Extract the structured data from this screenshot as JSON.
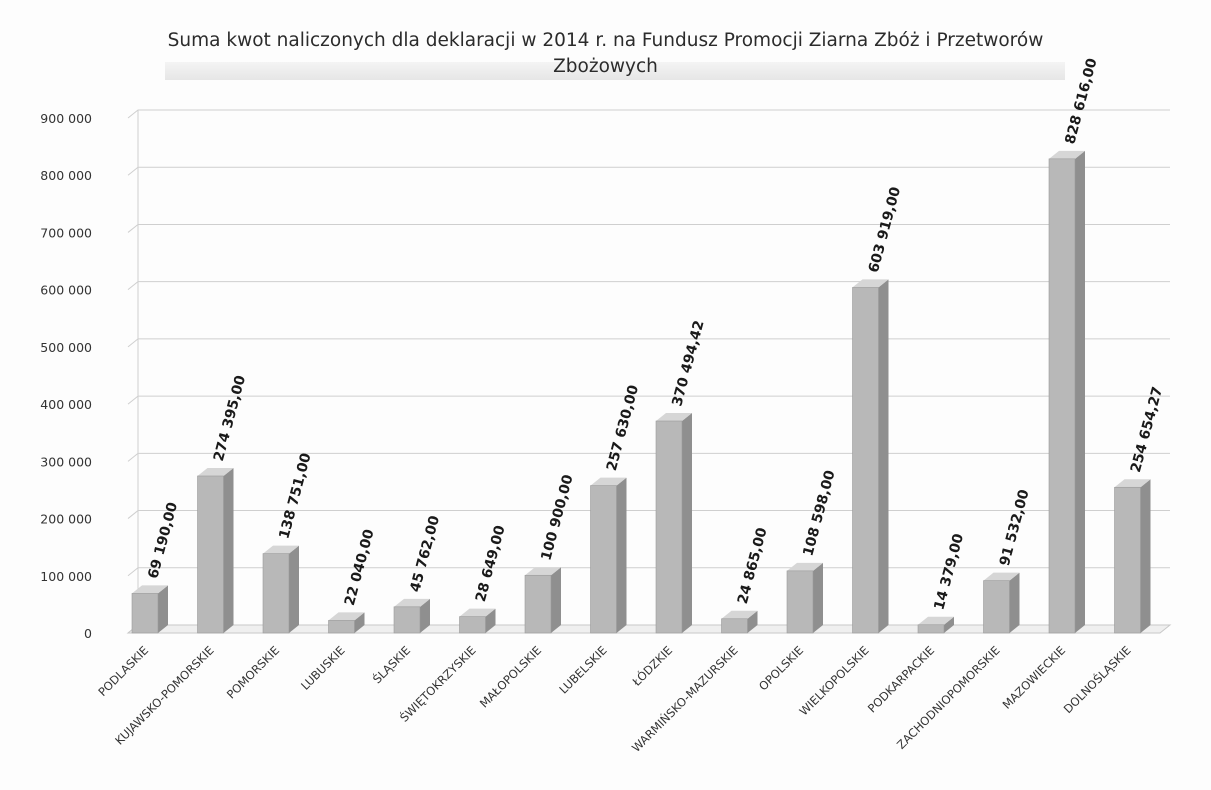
{
  "chart_data": {
    "type": "bar",
    "title": "Suma kwot naliczonych dla deklaracji  w 2014 r. na Fundusz Promocji Ziarna Zbóż i Przetworów",
    "title_line2": "Zbożowych",
    "xlabel": "",
    "ylabel": "",
    "ylim": [
      0,
      900000
    ],
    "y_ticks": [
      0,
      100000,
      200000,
      300000,
      400000,
      500000,
      600000,
      700000,
      800000,
      900000
    ],
    "y_tick_labels": [
      "0",
      "100 000",
      "200 000",
      "300 000",
      "400 000",
      "500 000",
      "600 000",
      "700 000",
      "800 000",
      "900 000"
    ],
    "grid": true,
    "legend": "none",
    "style": "3d-column",
    "bar_color": "#b8b8b8",
    "categories": [
      "PODLASKIE",
      "KUJAWSKO-POMORSKIE",
      "POMORSKIE",
      "LUBUSKIE",
      "ŚLĄSKIE",
      "ŚWIĘTOKRZYSKIE",
      "MAŁOPOLSKIE",
      "LUBELSKIE",
      "ŁÓDZKIE",
      "WARMIŃSKO-MAZURSKIE",
      "OPOLSKIE",
      "WIELKOPOLSKIE",
      "PODKARPACKIE",
      "ZACHODNIOPOMORSKIE",
      "MAZOWIECKIE",
      "DOLNOŚLĄSKIE"
    ],
    "values": [
      69190.0,
      274395.0,
      138751.0,
      22040.0,
      45762.0,
      28649.0,
      100900.0,
      257630.0,
      370494.42,
      24865.0,
      108598.0,
      603919.0,
      14379.0,
      91532.0,
      828616.0,
      254654.27
    ],
    "data_labels": [
      "69 190,00",
      "274 395,00",
      "138 751,00",
      "22 040,00",
      "45 762,00",
      "28 649,00",
      "100 900,00",
      "257 630,00",
      "370 494,42",
      "24 865,00",
      "108 598,00",
      "603 919,00",
      "14 379,00",
      "91 532,00",
      "828 616,00",
      "254 654,27"
    ]
  }
}
